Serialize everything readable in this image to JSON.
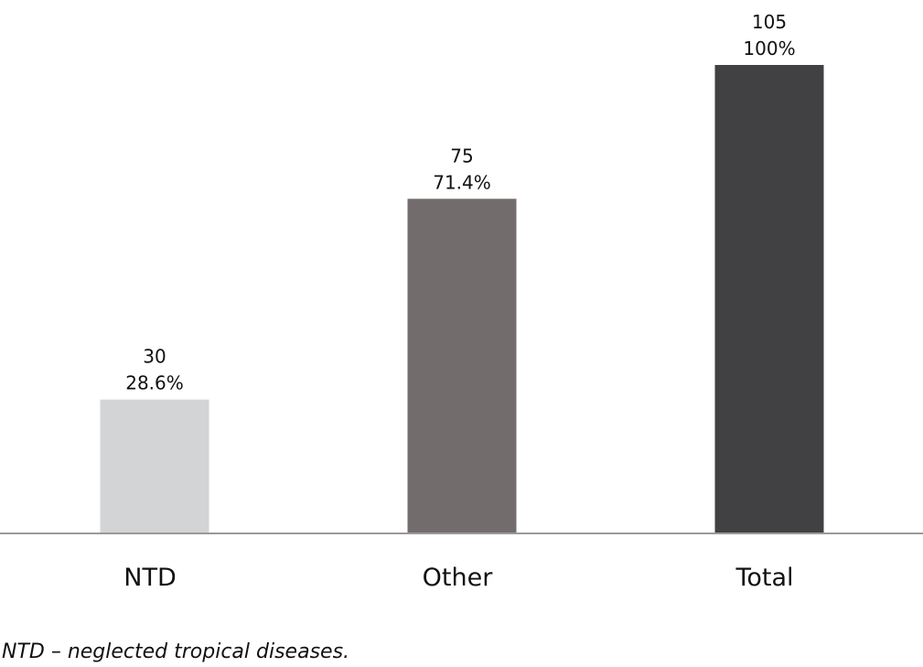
{
  "chart_data": {
    "type": "bar",
    "categories": [
      "NTD",
      "Other",
      "Total"
    ],
    "values": [
      30,
      75,
      105
    ],
    "percent_labels": [
      "28.6%",
      "71.4%",
      "100%"
    ],
    "colors": [
      "#d3d4d6",
      "#726d6c",
      "#414042"
    ],
    "axis_color": "#9a9a9a",
    "ylim": [
      0,
      105
    ],
    "title": "",
    "xlabel": "",
    "ylabel": "",
    "grid": false
  },
  "footnote": "NTD – neglected tropical diseases."
}
